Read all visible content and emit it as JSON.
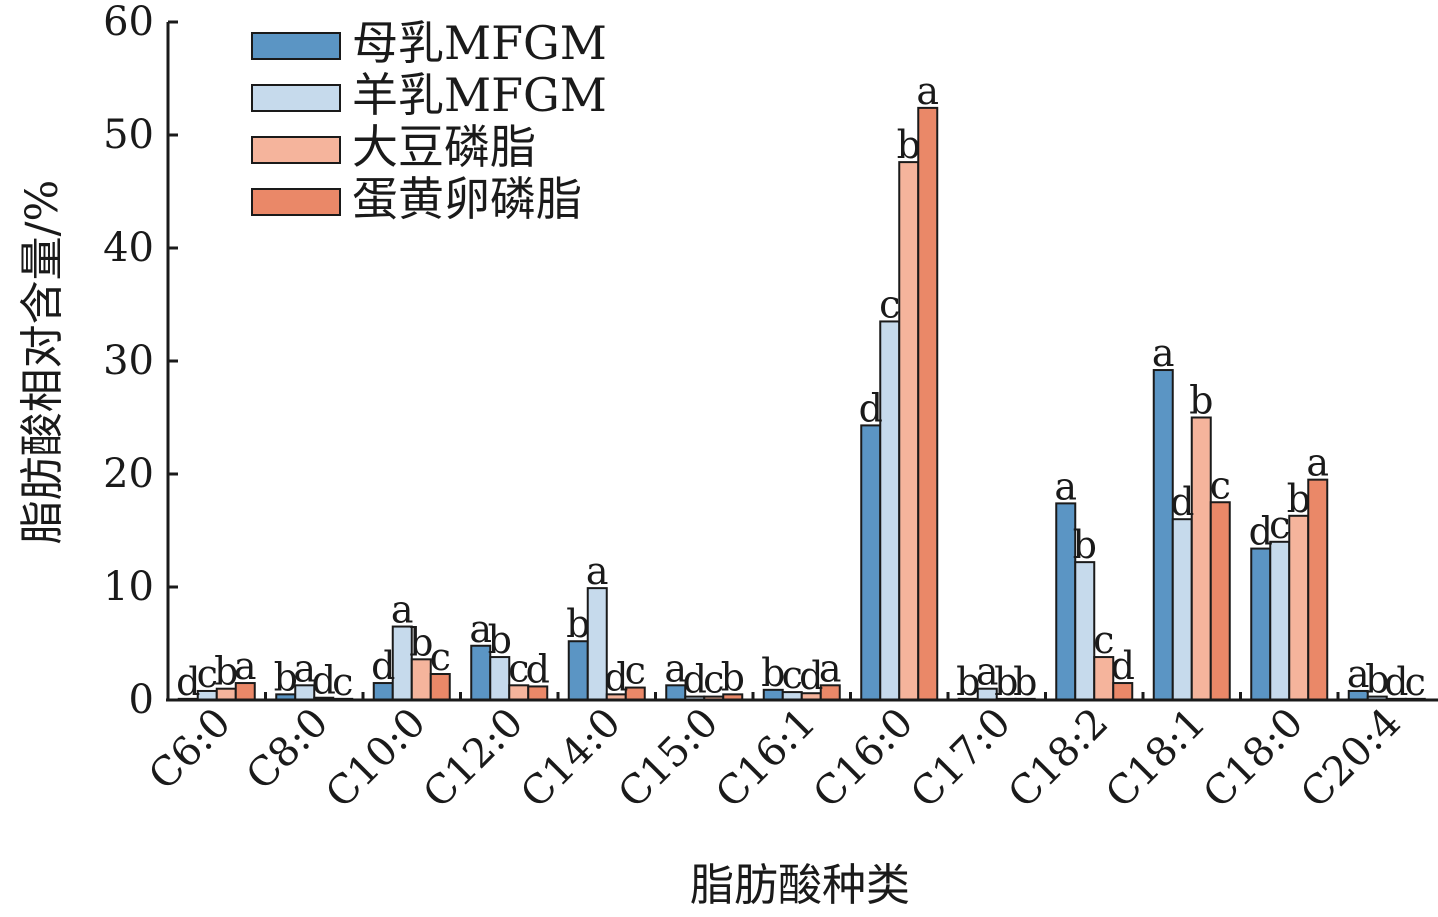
{
  "chart_data": {
    "type": "bar",
    "title": "",
    "xlabel": "脂肪酸种类",
    "ylabel": "脂肪酸相对含量/%",
    "ylim": [
      0,
      60
    ],
    "yticks": [
      0,
      10,
      20,
      30,
      40,
      50,
      60
    ],
    "legend_position": "top-left",
    "grid": false,
    "categories": [
      "C6:0",
      "C8:0",
      "C10:0",
      "C12:0",
      "C14:0",
      "C15:0",
      "C16:1",
      "C16:0",
      "C17:0",
      "C18:2",
      "C18:1",
      "C18:0",
      "C20:4"
    ],
    "series": [
      {
        "name": "母乳MFGM",
        "color": "#5b95c4",
        "values": [
          0.1,
          0.5,
          1.5,
          4.8,
          5.2,
          1.3,
          0.9,
          24.3,
          0.1,
          17.4,
          29.2,
          13.4,
          0.8
        ],
        "labels": [
          "d",
          "b",
          "d",
          "a",
          "b",
          "a",
          "b",
          "d",
          "b",
          "a",
          "a",
          "d",
          "a"
        ]
      },
      {
        "name": "羊乳MFGM",
        "color": "#c6daec",
        "values": [
          0.8,
          1.3,
          6.5,
          3.8,
          9.9,
          0.3,
          0.7,
          33.5,
          1.0,
          12.2,
          16.0,
          14.0,
          0.3
        ],
        "labels": [
          "c",
          "a",
          "a",
          "b",
          "a",
          "d",
          "c",
          "c",
          "a",
          "b",
          "d",
          "c",
          "b"
        ]
      },
      {
        "name": "大豆磷脂",
        "color": "#f5b49c",
        "values": [
          1.0,
          0.2,
          3.6,
          1.3,
          0.5,
          0.3,
          0.6,
          47.6,
          0.1,
          3.8,
          25.0,
          16.3,
          0.1
        ],
        "labels": [
          "b",
          "d",
          "b",
          "c",
          "d",
          "c",
          "d",
          "b",
          "b",
          "c",
          "b",
          "b",
          "d"
        ]
      },
      {
        "name": "蛋黄卵磷脂",
        "color": "#ea8868",
        "values": [
          1.5,
          0.1,
          2.3,
          1.2,
          1.1,
          0.5,
          1.3,
          52.4,
          0.1,
          1.5,
          17.5,
          19.5,
          0.1
        ],
        "labels": [
          "a",
          "c",
          "c",
          "d",
          "c",
          "b",
          "a",
          "a",
          "b",
          "d",
          "c",
          "a",
          "c"
        ]
      }
    ]
  }
}
